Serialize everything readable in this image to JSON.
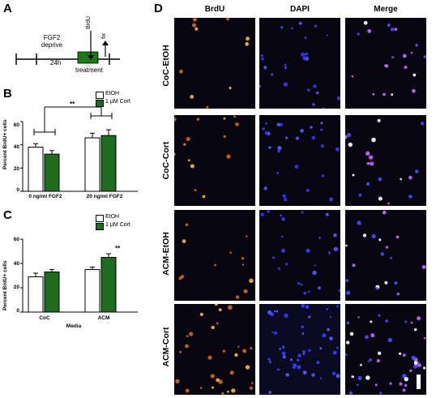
{
  "panels": {
    "a": "A",
    "b": "B",
    "c": "C",
    "d": "D"
  },
  "timeline": {
    "fgf2_label_line1": "FGF2",
    "fgf2_label_line2": "deprive",
    "duration_24h": "24h",
    "brdu_label": "BrdU",
    "fix_label": "fix",
    "treatment_box_label": "3h",
    "treatment_label": "treatment",
    "treatment_color": "#1a7a1a"
  },
  "legend": {
    "etoh": "EtOH",
    "cort": "1 μM Cort",
    "etoh_color": "#ffffff",
    "cort_color": "#1f6b1f"
  },
  "chart_data": [
    {
      "type": "bar",
      "panel": "B",
      "categories": [
        "0 ng/ml FGF2",
        "20 ng/ml FGF2"
      ],
      "series": [
        {
          "name": "EtOH",
          "values": [
            38,
            46
          ],
          "errors": [
            3,
            4
          ]
        },
        {
          "name": "1 μM Cort",
          "values": [
            32,
            48
          ],
          "errors": [
            3,
            5
          ]
        }
      ],
      "ylabel": "Percent BrdU+ cells",
      "ylim": [
        0,
        60
      ],
      "yticks": [
        "0",
        "20",
        "40",
        "60"
      ],
      "significance": "**"
    },
    {
      "type": "bar",
      "panel": "C",
      "categories": [
        "CoC",
        "ACM"
      ],
      "series": [
        {
          "name": "EtOH",
          "values": [
            29,
            35
          ],
          "errors": [
            3,
            2
          ]
        },
        {
          "name": "1 μM Cort",
          "values": [
            33,
            45
          ],
          "errors": [
            2,
            3
          ]
        }
      ],
      "ylabel": "Percent BrdU+ cells",
      "xlabel": "Media",
      "ylim": [
        0,
        60
      ],
      "yticks": [
        "0",
        "20",
        "40",
        "60"
      ],
      "significance": "**"
    }
  ],
  "micrographs": {
    "columns": [
      "BrdU",
      "DAPI",
      "Merge"
    ],
    "rows": [
      "CoC-EtOH",
      "CoC-Cort",
      "ACM-EtOH",
      "ACM-Cort"
    ]
  }
}
